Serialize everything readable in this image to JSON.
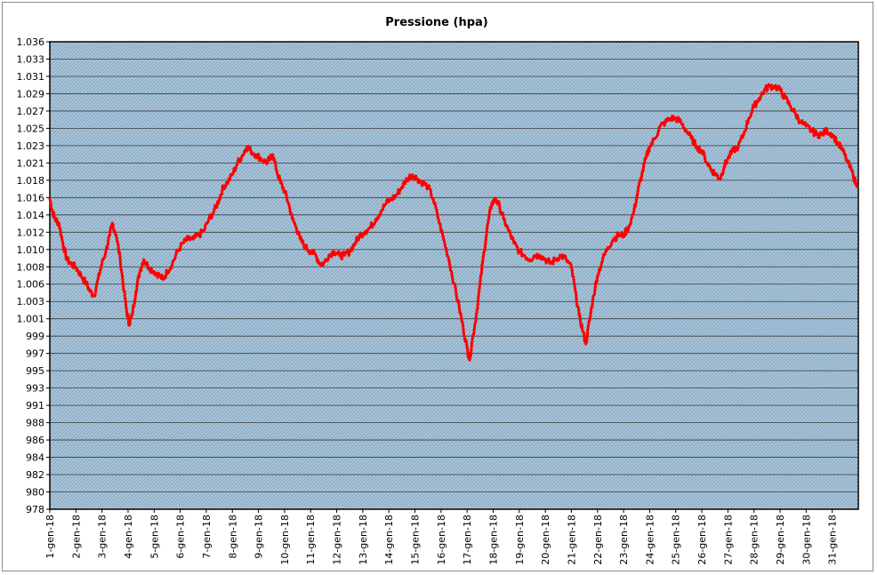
{
  "chart_data": {
    "type": "line",
    "title": "Pressione (hpa)",
    "xlabel": "",
    "ylabel": "",
    "ylim": [
      978,
      1036
    ],
    "grid": true,
    "legend": "none",
    "y_ticks": [
      "1.036",
      "1.033",
      "1.031",
      "1.029",
      "1.027",
      "1.025",
      "1.023",
      "1.021",
      "1.018",
      "1.016",
      "1.014",
      "1.012",
      "1.010",
      "1.008",
      "1.006",
      "1.003",
      "1.001",
      "999",
      "997",
      "995",
      "993",
      "991",
      "988",
      "986",
      "984",
      "982",
      "980",
      "978"
    ],
    "x": [
      "1-gen-18",
      "2-gen-18",
      "3-gen-18",
      "4-gen-18",
      "5-gen-18",
      "6-gen-18",
      "7-gen-18",
      "8-gen-18",
      "9-gen-18",
      "10-gen-18",
      "11-gen-18",
      "12-gen-18",
      "13-gen-18",
      "14-gen-18",
      "15-gen-18",
      "16-gen-18",
      "17-gen-18",
      "18-gen-18",
      "19-gen-18",
      "20-gen-18",
      "21-gen-18",
      "22-gen-18",
      "23-gen-18",
      "24-gen-18",
      "25-gen-18",
      "26-gen-18",
      "27-gen-18",
      "28-gen-18",
      "29-gen-18",
      "30-gen-18",
      "31-gen-18"
    ],
    "series": [
      {
        "color": "#ff0000",
        "points": [
          [
            0.0,
            1016.5
          ],
          [
            0.1,
            1015.0
          ],
          [
            0.2,
            1014.0
          ],
          [
            0.35,
            1013.5
          ],
          [
            0.5,
            1011.0
          ],
          [
            0.65,
            1009.0
          ],
          [
            0.8,
            1008.5
          ],
          [
            1.0,
            1008.0
          ],
          [
            1.2,
            1007.0
          ],
          [
            1.4,
            1006.0
          ],
          [
            1.55,
            1005.0
          ],
          [
            1.7,
            1004.5
          ],
          [
            1.85,
            1006.5
          ],
          [
            2.0,
            1008.5
          ],
          [
            2.15,
            1010.0
          ],
          [
            2.3,
            1012.0
          ],
          [
            2.4,
            1013.5
          ],
          [
            2.55,
            1012.0
          ],
          [
            2.7,
            1009.0
          ],
          [
            2.85,
            1005.0
          ],
          [
            2.95,
            1002.5
          ],
          [
            3.05,
            1001.0
          ],
          [
            3.15,
            1002.0
          ],
          [
            3.3,
            1005.0
          ],
          [
            3.45,
            1007.5
          ],
          [
            3.6,
            1009.0
          ],
          [
            3.8,
            1008.0
          ],
          [
            4.0,
            1007.5
          ],
          [
            4.2,
            1007.0
          ],
          [
            4.35,
            1006.5
          ],
          [
            4.5,
            1007.5
          ],
          [
            4.7,
            1008.5
          ],
          [
            4.9,
            1010.0
          ],
          [
            5.1,
            1011.0
          ],
          [
            5.3,
            1011.5
          ],
          [
            5.5,
            1011.5
          ],
          [
            5.7,
            1012.0
          ],
          [
            5.9,
            1012.5
          ],
          [
            6.1,
            1014.0
          ],
          [
            6.3,
            1015.0
          ],
          [
            6.5,
            1016.5
          ],
          [
            6.65,
            1018.0
          ],
          [
            6.8,
            1018.5
          ],
          [
            7.0,
            1019.5
          ],
          [
            7.2,
            1021.0
          ],
          [
            7.4,
            1022.0
          ],
          [
            7.55,
            1023.0
          ],
          [
            7.7,
            1022.5
          ],
          [
            7.9,
            1022.0
          ],
          [
            8.1,
            1021.5
          ],
          [
            8.3,
            1021.0
          ],
          [
            8.45,
            1021.5
          ],
          [
            8.55,
            1022.0
          ],
          [
            8.7,
            1020.0
          ],
          [
            8.85,
            1018.5
          ],
          [
            9.0,
            1017.5
          ],
          [
            9.15,
            1016.0
          ],
          [
            9.3,
            1014.0
          ],
          [
            9.45,
            1013.0
          ],
          [
            9.6,
            1011.5
          ],
          [
            9.8,
            1010.5
          ],
          [
            10.0,
            1010.0
          ],
          [
            10.2,
            1009.5
          ],
          [
            10.35,
            1008.5
          ],
          [
            10.5,
            1008.5
          ],
          [
            10.7,
            1009.5
          ],
          [
            10.9,
            1010.0
          ],
          [
            11.1,
            1009.5
          ],
          [
            11.3,
            1009.5
          ],
          [
            11.5,
            1010.0
          ],
          [
            11.7,
            1011.0
          ],
          [
            11.9,
            1012.0
          ],
          [
            12.1,
            1012.5
          ],
          [
            12.3,
            1013.0
          ],
          [
            12.5,
            1014.0
          ],
          [
            12.7,
            1015.0
          ],
          [
            12.9,
            1016.0
          ],
          [
            13.1,
            1016.5
          ],
          [
            13.3,
            1017.0
          ],
          [
            13.5,
            1018.0
          ],
          [
            13.7,
            1019.0
          ],
          [
            13.9,
            1019.5
          ],
          [
            14.1,
            1019.0
          ],
          [
            14.3,
            1018.5
          ],
          [
            14.5,
            1018.0
          ],
          [
            14.7,
            1016.5
          ],
          [
            14.9,
            1014.0
          ],
          [
            15.1,
            1011.5
          ],
          [
            15.3,
            1009.0
          ],
          [
            15.5,
            1006.0
          ],
          [
            15.7,
            1003.0
          ],
          [
            15.85,
            1000.5
          ],
          [
            16.0,
            998.0
          ],
          [
            16.1,
            996.5
          ],
          [
            16.2,
            999.0
          ],
          [
            16.35,
            1002.0
          ],
          [
            16.5,
            1006.0
          ],
          [
            16.65,
            1010.0
          ],
          [
            16.8,
            1013.5
          ],
          [
            16.95,
            1016.0
          ],
          [
            17.1,
            1016.5
          ],
          [
            17.25,
            1015.5
          ],
          [
            17.4,
            1014.0
          ],
          [
            17.6,
            1012.5
          ],
          [
            17.8,
            1011.0
          ],
          [
            18.0,
            1010.0
          ],
          [
            18.2,
            1009.5
          ],
          [
            18.4,
            1009.0
          ],
          [
            18.6,
            1009.5
          ],
          [
            18.8,
            1009.5
          ],
          [
            19.0,
            1009.0
          ],
          [
            19.2,
            1008.5
          ],
          [
            19.4,
            1009.0
          ],
          [
            19.6,
            1009.5
          ],
          [
            19.8,
            1009.0
          ],
          [
            20.0,
            1008.0
          ],
          [
            20.15,
            1005.0
          ],
          [
            20.3,
            1002.0
          ],
          [
            20.45,
            1000.0
          ],
          [
            20.55,
            998.5
          ],
          [
            20.7,
            1001.5
          ],
          [
            20.85,
            1004.5
          ],
          [
            21.0,
            1007.0
          ],
          [
            21.2,
            1009.0
          ],
          [
            21.4,
            1010.5
          ],
          [
            21.6,
            1011.5
          ],
          [
            21.8,
            1012.0
          ],
          [
            22.0,
            1012.0
          ],
          [
            22.2,
            1013.0
          ],
          [
            22.4,
            1015.0
          ],
          [
            22.55,
            1017.5
          ],
          [
            22.7,
            1019.5
          ],
          [
            22.85,
            1021.5
          ],
          [
            23.0,
            1023.0
          ],
          [
            23.2,
            1024.0
          ],
          [
            23.4,
            1025.5
          ],
          [
            23.6,
            1026.0
          ],
          [
            23.8,
            1026.5
          ],
          [
            24.0,
            1026.5
          ],
          [
            24.2,
            1026.0
          ],
          [
            24.4,
            1025.0
          ],
          [
            24.6,
            1024.0
          ],
          [
            24.8,
            1023.0
          ],
          [
            25.0,
            1022.5
          ],
          [
            25.2,
            1021.0
          ],
          [
            25.4,
            1020.0
          ],
          [
            25.55,
            1019.5
          ],
          [
            25.7,
            1019.0
          ],
          [
            25.85,
            1020.5
          ],
          [
            26.0,
            1021.5
          ],
          [
            26.2,
            1022.5
          ],
          [
            26.4,
            1023.0
          ],
          [
            26.6,
            1024.5
          ],
          [
            26.8,
            1026.5
          ],
          [
            27.0,
            1028.0
          ],
          [
            27.2,
            1029.0
          ],
          [
            27.4,
            1030.0
          ],
          [
            27.6,
            1030.5
          ],
          [
            27.8,
            1030.5
          ],
          [
            28.0,
            1030.0
          ],
          [
            28.2,
            1029.0
          ],
          [
            28.4,
            1028.0
          ],
          [
            28.6,
            1027.0
          ],
          [
            28.8,
            1026.0
          ],
          [
            29.0,
            1025.5
          ],
          [
            29.2,
            1025.0
          ],
          [
            29.4,
            1024.5
          ],
          [
            29.6,
            1024.5
          ],
          [
            29.8,
            1025.0
          ],
          [
            30.0,
            1024.5
          ],
          [
            30.2,
            1023.5
          ],
          [
            30.4,
            1022.5
          ],
          [
            30.6,
            1021.0
          ],
          [
            30.8,
            1019.5
          ],
          [
            30.95,
            1018.0
          ]
        ]
      }
    ]
  }
}
